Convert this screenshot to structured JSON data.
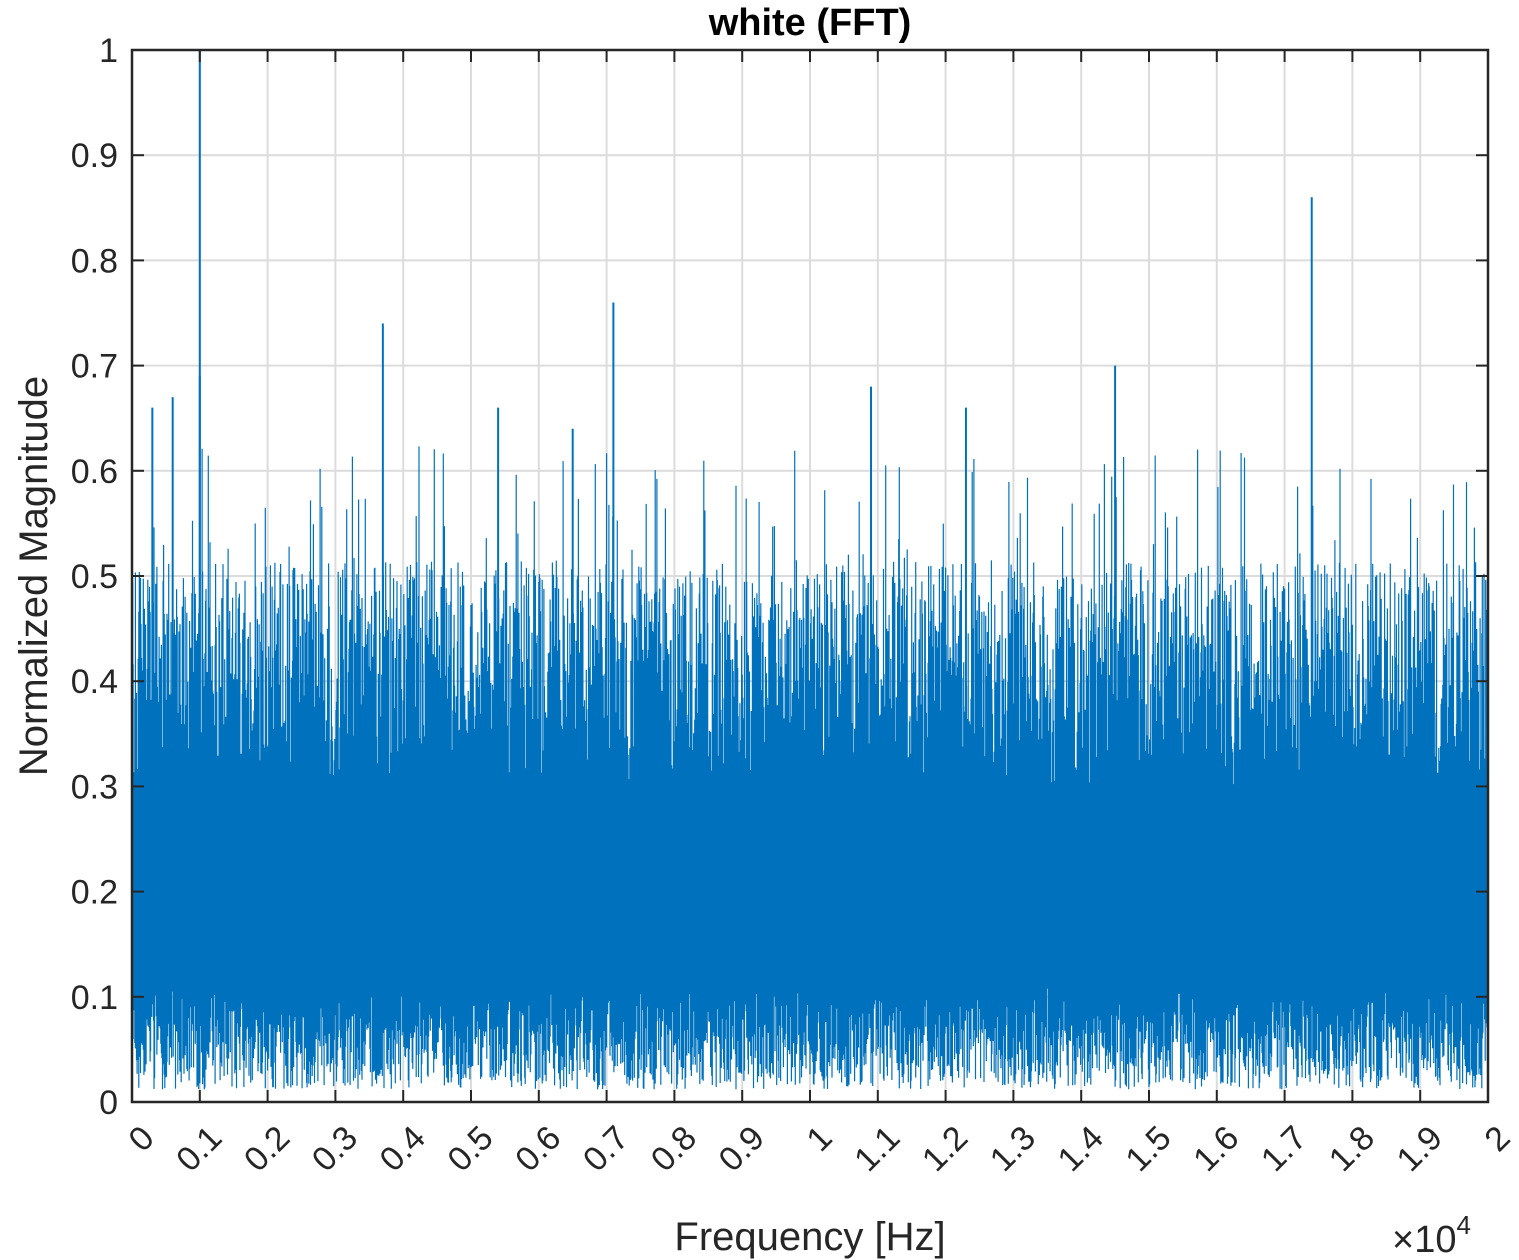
{
  "chart_data": {
    "type": "line",
    "title": "white (FFT)",
    "xlabel": "Frequency [Hz]",
    "ylabel": "Normalized Magnitude",
    "x_exponent_base": "×10",
    "x_exponent_power": "4",
    "xlim": [
      0,
      20000
    ],
    "ylim": [
      0,
      1
    ],
    "grid": true,
    "x_ticks": [
      0,
      1000,
      2000,
      3000,
      4000,
      5000,
      6000,
      7000,
      8000,
      9000,
      10000,
      11000,
      12000,
      13000,
      14000,
      15000,
      16000,
      17000,
      18000,
      19000,
      20000
    ],
    "x_tick_labels": [
      "0",
      "0.1",
      "0.2",
      "0.3",
      "0.4",
      "0.5",
      "0.6",
      "0.7",
      "0.8",
      "0.9",
      "1",
      "1.1",
      "1.2",
      "1.3",
      "1.4",
      "1.5",
      "1.6",
      "1.7",
      "1.8",
      "1.9",
      "2"
    ],
    "y_ticks": [
      0,
      0.1,
      0.2,
      0.3,
      0.4,
      0.5,
      0.6,
      0.7,
      0.8,
      0.9,
      1
    ],
    "y_tick_labels": [
      "0",
      "0.1",
      "0.2",
      "0.3",
      "0.4",
      "0.5",
      "0.6",
      "0.7",
      "0.8",
      "0.9",
      "1"
    ],
    "series": [
      {
        "color": "#0072BD",
        "band_low_typical": 0.06,
        "band_high_typical": 0.48,
        "peaks": [
          {
            "x": 1000,
            "y": 1.0
          },
          {
            "x": 1000,
            "y": 0.69
          },
          {
            "x": 3700,
            "y": 0.74
          },
          {
            "x": 7100,
            "y": 0.76
          },
          {
            "x": 10900,
            "y": 0.68
          },
          {
            "x": 14500,
            "y": 0.7
          },
          {
            "x": 17400,
            "y": 0.86
          },
          {
            "x": 300,
            "y": 0.66
          },
          {
            "x": 600,
            "y": 0.67
          },
          {
            "x": 5400,
            "y": 0.66
          },
          {
            "x": 6500,
            "y": 0.64
          },
          {
            "x": 12300,
            "y": 0.66
          }
        ]
      }
    ]
  }
}
